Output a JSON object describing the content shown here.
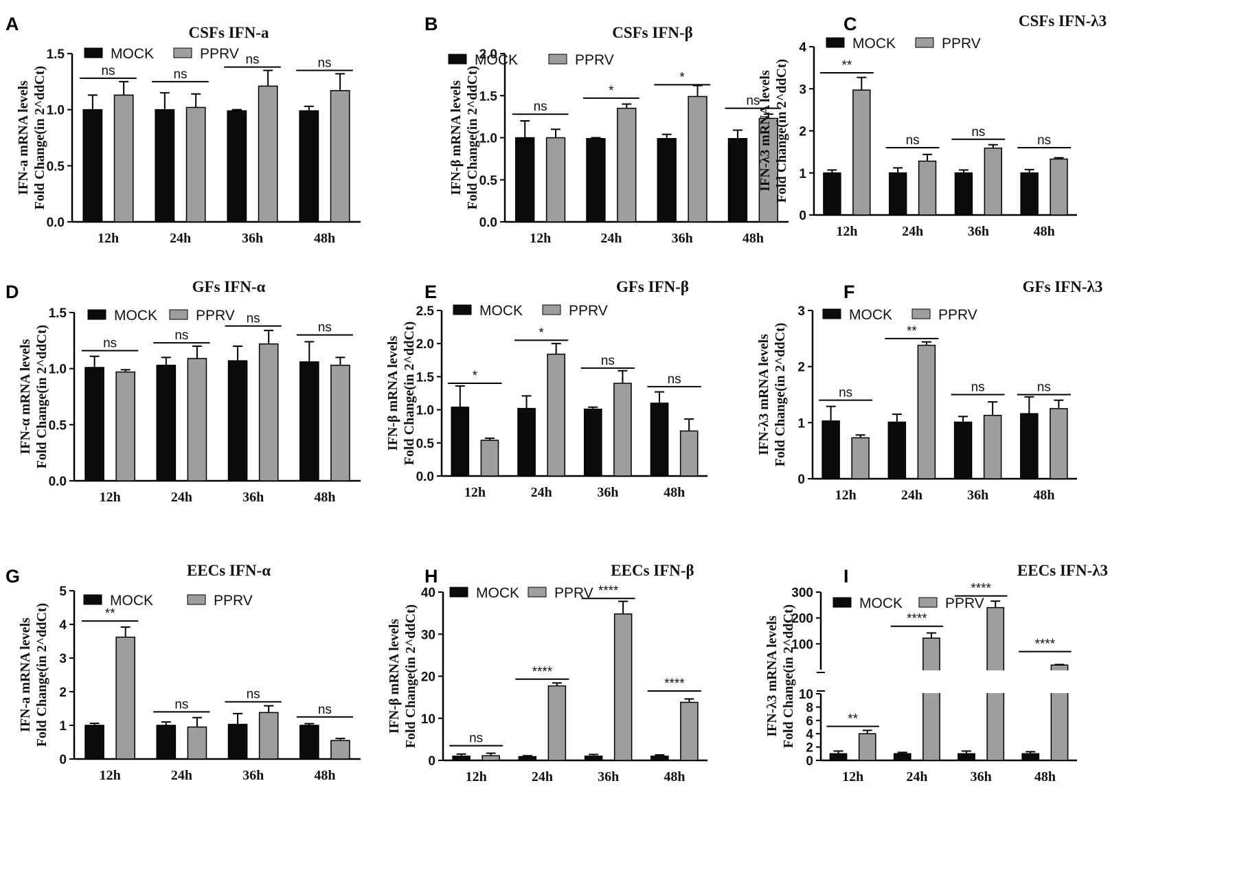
{
  "figure_panels": [
    "A",
    "B",
    "C",
    "D",
    "E",
    "F",
    "G",
    "H",
    "I"
  ],
  "colors": {
    "mock": "#0b0b0b",
    "pprv": "#9e9e9e",
    "axis": "#000000"
  },
  "legend": {
    "mock": "MOCK",
    "pprv": "PPRV"
  },
  "chart_data": [
    {
      "panel": "A",
      "type": "bar",
      "title": "CSFs IFN-a",
      "ylabel_lines": [
        "IFN-a mRNA levels",
        "Fold Change(in 2^ddCt)"
      ],
      "categories": [
        "12h",
        "24h",
        "36h",
        "48h"
      ],
      "ylim": [
        0,
        1.5
      ],
      "yticks": [
        "0.0",
        "0.5",
        "1.0",
        "1.5"
      ],
      "series": [
        {
          "name": "MOCK",
          "values": [
            1.0,
            1.0,
            0.99,
            0.99
          ],
          "errors": [
            0.13,
            0.15,
            0.01,
            0.04
          ]
        },
        {
          "name": "PPRV",
          "values": [
            1.13,
            1.02,
            1.21,
            1.17
          ],
          "errors": [
            0.12,
            0.12,
            0.14,
            0.15
          ]
        }
      ],
      "significance": [
        "ns",
        "ns",
        "ns",
        "ns"
      ],
      "sig_heights": [
        1.28,
        1.25,
        1.38,
        1.35
      ]
    },
    {
      "panel": "B",
      "type": "bar",
      "title": "CSFs IFN-β",
      "ylabel_lines": [
        "IFN-β mRNA levels",
        "Fold Change(in 2^ddCt)"
      ],
      "categories": [
        "12h",
        "24h",
        "36h",
        "48h"
      ],
      "ylim": [
        0,
        2.0
      ],
      "yticks": [
        "0.0",
        "0.5",
        "1.0",
        "1.5",
        "2.0"
      ],
      "series": [
        {
          "name": "MOCK",
          "values": [
            1.0,
            0.99,
            0.99,
            0.99
          ],
          "errors": [
            0.2,
            0.01,
            0.05,
            0.1
          ]
        },
        {
          "name": "PPRV",
          "values": [
            1.0,
            1.35,
            1.49,
            1.23
          ],
          "errors": [
            0.1,
            0.05,
            0.13,
            0.05
          ]
        }
      ],
      "significance": [
        "ns",
        "*",
        "*",
        "ns"
      ],
      "sig_heights": [
        1.28,
        1.47,
        1.63,
        1.35
      ]
    },
    {
      "panel": "C",
      "type": "bar",
      "title": "CSFs IFN-λ3",
      "ylabel_lines": [
        "IFN-λ3 mRNA levels",
        "Fold Change(in 2^ddCt)"
      ],
      "categories": [
        "12h",
        "24h",
        "36h",
        "48h"
      ],
      "ylim": [
        0,
        4
      ],
      "yticks": [
        "0",
        "1",
        "2",
        "3",
        "4"
      ],
      "series": [
        {
          "name": "MOCK",
          "values": [
            1.0,
            1.0,
            1.0,
            1.0
          ],
          "errors": [
            0.07,
            0.12,
            0.07,
            0.08
          ]
        },
        {
          "name": "PPRV",
          "values": [
            2.97,
            1.28,
            1.59,
            1.33
          ],
          "errors": [
            0.3,
            0.16,
            0.08,
            0.03
          ]
        }
      ],
      "significance": [
        "**",
        "ns",
        "ns",
        "ns"
      ],
      "sig_heights": [
        3.38,
        1.6,
        1.8,
        1.6
      ]
    },
    {
      "panel": "D",
      "type": "bar",
      "title": "GFs IFN-α",
      "ylabel_lines": [
        "IFN-α mRNA levels",
        "Fold Change(in 2^ddCt)"
      ],
      "categories": [
        "12h",
        "24h",
        "36h",
        "48h"
      ],
      "ylim": [
        0,
        1.5
      ],
      "yticks": [
        "0.0",
        "0.5",
        "1.0",
        "1.5"
      ],
      "series": [
        {
          "name": "MOCK",
          "values": [
            1.01,
            1.03,
            1.07,
            1.06
          ],
          "errors": [
            0.1,
            0.07,
            0.13,
            0.18
          ]
        },
        {
          "name": "PPRV",
          "values": [
            0.97,
            1.09,
            1.22,
            1.03
          ],
          "errors": [
            0.02,
            0.11,
            0.12,
            0.07
          ]
        }
      ],
      "significance": [
        "ns",
        "ns",
        "ns",
        "ns"
      ],
      "sig_heights": [
        1.16,
        1.23,
        1.38,
        1.3
      ]
    },
    {
      "panel": "E",
      "type": "bar",
      "title": "GFs IFN-β",
      "ylabel_lines": [
        "IFN-β mRNA levels",
        "Fold Change(in 2^ddCt)"
      ],
      "categories": [
        "12h",
        "24h",
        "36h",
        "48h"
      ],
      "ylim": [
        0,
        2.5
      ],
      "yticks": [
        "0.0",
        "0.5",
        "1.0",
        "1.5",
        "2.0",
        "2.5"
      ],
      "series": [
        {
          "name": "MOCK",
          "values": [
            1.04,
            1.02,
            1.01,
            1.1
          ],
          "errors": [
            0.32,
            0.19,
            0.03,
            0.17
          ]
        },
        {
          "name": "PPRV",
          "values": [
            0.54,
            1.84,
            1.4,
            0.68
          ],
          "errors": [
            0.03,
            0.16,
            0.19,
            0.18
          ]
        }
      ],
      "significance": [
        "*",
        "*",
        "ns",
        "ns"
      ],
      "sig_heights": [
        1.4,
        2.05,
        1.63,
        1.35
      ]
    },
    {
      "panel": "F",
      "type": "bar",
      "title": "GFs IFN-λ3",
      "ylabel_lines": [
        "IFN-λ3 mRNA levels",
        "Fold Change(in 2^ddCt)"
      ],
      "categories": [
        "12h",
        "24h",
        "36h",
        "48h"
      ],
      "ylim": [
        0,
        3
      ],
      "yticks": [
        "0",
        "1",
        "2",
        "3"
      ],
      "series": [
        {
          "name": "MOCK",
          "values": [
            1.03,
            1.01,
            1.01,
            1.16
          ],
          "errors": [
            0.26,
            0.14,
            0.1,
            0.3
          ]
        },
        {
          "name": "PPRV",
          "values": [
            0.73,
            2.38,
            1.13,
            1.25
          ],
          "errors": [
            0.05,
            0.06,
            0.24,
            0.15
          ]
        }
      ],
      "significance": [
        "ns",
        "**",
        "ns",
        "ns"
      ],
      "sig_heights": [
        1.4,
        2.5,
        1.5,
        1.5
      ]
    },
    {
      "panel": "G",
      "type": "bar",
      "title": "EECs IFN-α",
      "ylabel_lines": [
        "IFN-a mRNA levels",
        "Fold Change(in 2^ddCt)"
      ],
      "categories": [
        "12h",
        "24h",
        "36h",
        "48h"
      ],
      "ylim": [
        0,
        5
      ],
      "yticks": [
        "0",
        "1",
        "2",
        "3",
        "4",
        "5"
      ],
      "series": [
        {
          "name": "MOCK",
          "values": [
            1.0,
            1.0,
            1.03,
            1.0
          ],
          "errors": [
            0.06,
            0.1,
            0.32,
            0.05
          ]
        },
        {
          "name": "PPRV",
          "values": [
            3.62,
            0.95,
            1.38,
            0.55
          ],
          "errors": [
            0.3,
            0.28,
            0.2,
            0.06
          ]
        }
      ],
      "significance": [
        "**",
        "ns",
        "ns",
        "ns"
      ],
      "sig_heights": [
        4.1,
        1.4,
        1.7,
        1.25
      ]
    },
    {
      "panel": "H",
      "type": "bar",
      "title": "EECs IFN-β",
      "ylabel_lines": [
        "IFN-β mRNA levels",
        "Fold Change(in 2^ddCt)"
      ],
      "categories": [
        "12h",
        "24h",
        "36h",
        "48h"
      ],
      "ylim": [
        0,
        40
      ],
      "yticks": [
        "0",
        "10",
        "20",
        "30",
        "40"
      ],
      "series": [
        {
          "name": "MOCK",
          "values": [
            1.0,
            0.9,
            1.0,
            1.0
          ],
          "errors": [
            0.5,
            0.2,
            0.4,
            0.3
          ]
        },
        {
          "name": "PPRV",
          "values": [
            1.1,
            17.7,
            34.8,
            13.8
          ],
          "errors": [
            0.6,
            0.7,
            3.0,
            0.8
          ]
        }
      ],
      "significance": [
        "ns",
        "****",
        "****",
        "****"
      ],
      "sig_heights": [
        3.5,
        19.3,
        38.5,
        16.5
      ]
    },
    {
      "panel": "I",
      "type": "bar",
      "title": "EECs IFN-λ3",
      "ylabel_lines": [
        "IFN-λ3 mRNA levels",
        "Fold Change(in 2^ddCt)"
      ],
      "categories": [
        "12h",
        "24h",
        "36h",
        "48h"
      ],
      "broken_axis": {
        "lower": [
          0,
          10
        ],
        "upper": [
          0,
          300
        ]
      },
      "yticks_lower": [
        "0",
        "2",
        "4",
        "6",
        "8",
        "10"
      ],
      "yticks_upper": [
        "100",
        "200",
        "300"
      ],
      "series": [
        {
          "name": "MOCK",
          "values": [
            1.0,
            1.0,
            1.0,
            1.0
          ],
          "errors": [
            0.4,
            0.2,
            0.4,
            0.3
          ]
        },
        {
          "name": "PPRV",
          "values": [
            4.0,
            122,
            240,
            18
          ],
          "errors": [
            0.5,
            20,
            25,
            2
          ]
        }
      ],
      "significance": [
        "**",
        "****",
        "****",
        "****"
      ],
      "sig_heights": [
        5.1,
        168,
        285,
        70
      ]
    }
  ]
}
